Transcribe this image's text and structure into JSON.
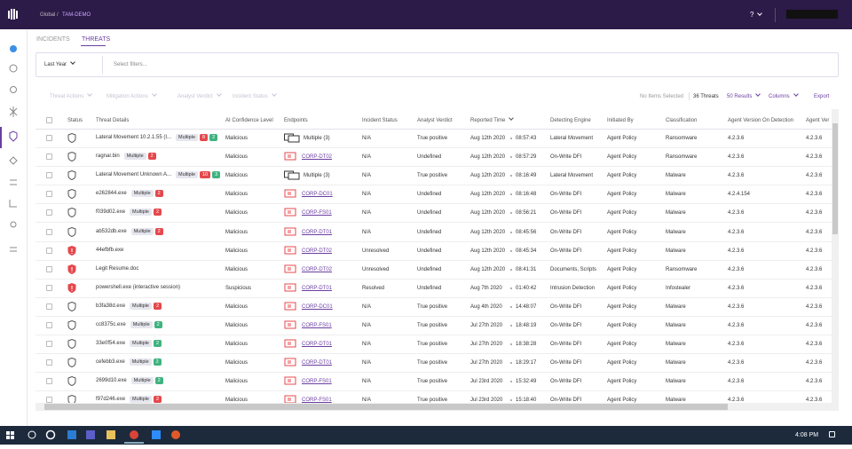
{
  "topbar": {
    "breadcrumb": [
      "Global",
      "TAM-DEMO"
    ],
    "separator": "/",
    "help": "?"
  },
  "tabs": [
    "INCIDENTS",
    "THREATS"
  ],
  "filter": {
    "range": "Last Year",
    "placeholder": "Select filters..."
  },
  "toolbar": {
    "actions": [
      "Threat Actions",
      "Mitigation Actions",
      "Analyst Verdict",
      "Incident Status"
    ],
    "selection": "No Items Selected",
    "count": "36 Threats",
    "results": "50 Results",
    "columns": "Columns",
    "export": "Export"
  },
  "table": {
    "columns": [
      "Status",
      "Threat Details",
      "AI Confidence Level",
      "Endpoints",
      "Incident Status",
      "Analyst Verdict",
      "Reported Time",
      "Detecting Engine",
      "Initiated By",
      "Classification",
      "Agent Version On Detection",
      "Agent Ver"
    ],
    "rows": [
      {
        "shield": "#555",
        "name": "Lateral Movement 10.2.1.55 (I...",
        "tag": "Multiple",
        "badges": [
          {
            "count": 8,
            "color": "#e5484d"
          },
          {
            "count": 2,
            "color": "#3fb37f"
          }
        ],
        "confidence": "Malicious",
        "endpoint": "Multiple (3)",
        "endpoint_type": "group",
        "incident": "N/A",
        "verdict": "True positive",
        "date": "Aug 12th 2020",
        "time": "08:57:43",
        "engine": "Lateral Movement",
        "initiated": "Agent Policy",
        "classification": "Ransomware",
        "agent_detect": "4.2.3.6",
        "agent": "4.2.3.6"
      },
      {
        "shield": "#555",
        "name": "ragnar.bin",
        "tag": "Multiple",
        "badges": [
          {
            "count": 2,
            "color": "#e5484d"
          }
        ],
        "confidence": "Malicious",
        "endpoint": "CORP-DT02",
        "endpoint_type": "host",
        "incident": "N/A",
        "verdict": "Undefined",
        "date": "Aug 12th 2020",
        "time": "08:57:29",
        "engine": "On-Write DFI",
        "initiated": "Agent Policy",
        "classification": "Ransomware",
        "agent_detect": "4.2.3.6",
        "agent": "4.2.3.6"
      },
      {
        "shield": "#555",
        "name": "Lateral Movement Unknown A...",
        "tag": "Multiple",
        "badges": [
          {
            "count": 10,
            "color": "#e5484d"
          },
          {
            "count": 3,
            "color": "#3fb37f"
          }
        ],
        "confidence": "Malicious",
        "endpoint": "Multiple (3)",
        "endpoint_type": "group",
        "incident": "N/A",
        "verdict": "True positive",
        "date": "Aug 12th 2020",
        "time": "08:16:49",
        "engine": "Lateral Movement",
        "initiated": "Agent Policy",
        "classification": "Malware",
        "agent_detect": "4.2.3.6",
        "agent": "4.2.3.6"
      },
      {
        "shield": "#555",
        "name": "e262844.exe",
        "tag": "Multiple",
        "badges": [
          {
            "count": 2,
            "color": "#e5484d"
          }
        ],
        "confidence": "Malicious",
        "endpoint": "CORP-DC01",
        "endpoint_type": "host",
        "incident": "N/A",
        "verdict": "Undefined",
        "date": "Aug 12th 2020",
        "time": "08:16:48",
        "engine": "On-Write DFI",
        "initiated": "Agent Policy",
        "classification": "Malware",
        "agent_detect": "4.2.4.154",
        "agent": "4.2.3.6"
      },
      {
        "shield": "#555",
        "name": "f039d02.exe",
        "tag": "Multiple",
        "badges": [
          {
            "count": 2,
            "color": "#e5484d"
          }
        ],
        "confidence": "Malicious",
        "endpoint": "CORP-FS01",
        "endpoint_type": "host",
        "incident": "N/A",
        "verdict": "Undefined",
        "date": "Aug 12th 2020",
        "time": "08:56:21",
        "engine": "On-Write DFI",
        "initiated": "Agent Policy",
        "classification": "Malware",
        "agent_detect": "4.2.3.6",
        "agent": "4.2.3.6"
      },
      {
        "shield": "#555",
        "name": "ab532db.exe",
        "tag": "Multiple",
        "badges": [
          {
            "count": 2,
            "color": "#e5484d"
          }
        ],
        "confidence": "Malicious",
        "endpoint": "CORP-DT01",
        "endpoint_type": "host",
        "incident": "N/A",
        "verdict": "Undefined",
        "date": "Aug 12th 2020",
        "time": "08:45:56",
        "engine": "On-Write DFI",
        "initiated": "Agent Policy",
        "classification": "Malware",
        "agent_detect": "4.2.3.6",
        "agent": "4.2.3.6"
      },
      {
        "shield": "#e5484d",
        "name": "44efbfb.exe",
        "confidence": "Malicious",
        "endpoint": "CORP-DT02",
        "endpoint_type": "host",
        "incident": "Unresolved",
        "verdict": "Undefined",
        "date": "Aug 12th 2020",
        "time": "08:45:34",
        "engine": "On-Write DFI",
        "initiated": "Agent Policy",
        "classification": "Malware",
        "agent_detect": "4.2.3.6",
        "agent": "4.2.3.6"
      },
      {
        "shield": "#e5484d",
        "name": "Legit Resume.doc",
        "confidence": "Malicious",
        "endpoint": "CORP-DT02",
        "endpoint_type": "host",
        "incident": "Unresolved",
        "verdict": "Undefined",
        "date": "Aug 12th 2020",
        "time": "08:41:31",
        "engine": "Documents, Scripts",
        "initiated": "Agent Policy",
        "classification": "Ransomware",
        "agent_detect": "4.2.3.6",
        "agent": "4.2.3.6"
      },
      {
        "shield": "#e5484d",
        "name": "powershell.exe (interactive session)",
        "confidence": "Suspicious",
        "endpoint": "CORP-DT01",
        "endpoint_type": "host",
        "incident": "Resolved",
        "verdict": "Undefined",
        "date": "Aug 7th 2020",
        "time": "01:40:42",
        "engine": "Intrusion Detection",
        "initiated": "Agent Policy",
        "classification": "Infostealer",
        "agent_detect": "4.2.3.6",
        "agent": "4.2.3.6"
      },
      {
        "shield": "#555",
        "name": "b3fa38d.exe",
        "tag": "Multiple",
        "badges": [
          {
            "count": 2,
            "color": "#e5484d"
          }
        ],
        "confidence": "Malicious",
        "endpoint": "CORP-DC01",
        "endpoint_type": "host",
        "incident": "N/A",
        "verdict": "True positive",
        "date": "Aug 4th 2020",
        "time": "14:48:07",
        "engine": "On-Write DFI",
        "initiated": "Agent Policy",
        "classification": "Malware",
        "agent_detect": "4.2.3.6",
        "agent": "4.2.3.6"
      },
      {
        "shield": "#555",
        "name": "cc8375c.exe",
        "tag": "Multiple",
        "badges": [
          {
            "count": 2,
            "color": "#3fb37f"
          }
        ],
        "confidence": "Malicious",
        "endpoint": "CORP-FS01",
        "endpoint_type": "host",
        "incident": "N/A",
        "verdict": "True positive",
        "date": "Jul 27th 2020",
        "time": "18:48:19",
        "engine": "On-Write DFI",
        "initiated": "Agent Policy",
        "classification": "Malware",
        "agent_detect": "4.2.3.6",
        "agent": "4.2.3.6"
      },
      {
        "shield": "#555",
        "name": "33e0f54.exe",
        "tag": "Multiple",
        "badges": [
          {
            "count": 2,
            "color": "#3fb37f"
          }
        ],
        "confidence": "Malicious",
        "endpoint": "CORP-DT01",
        "endpoint_type": "host",
        "incident": "N/A",
        "verdict": "True positive",
        "date": "Jul 27th 2020",
        "time": "18:38:28",
        "engine": "On-Write DFI",
        "initiated": "Agent Policy",
        "classification": "Malware",
        "agent_detect": "4.2.3.6",
        "agent": "4.2.3.6"
      },
      {
        "shield": "#555",
        "name": "cefebb3.exe",
        "tag": "Multiple",
        "badges": [
          {
            "count": 2,
            "color": "#3fb37f"
          }
        ],
        "confidence": "Malicious",
        "endpoint": "CORP-DT01",
        "endpoint_type": "host",
        "incident": "N/A",
        "verdict": "True positive",
        "date": "Jul 27th 2020",
        "time": "18:29:17",
        "engine": "On-Write DFI",
        "initiated": "Agent Policy",
        "classification": "Malware",
        "agent_detect": "4.2.3.6",
        "agent": "4.2.3.6"
      },
      {
        "shield": "#555",
        "name": "2699d10.exe",
        "tag": "Multiple",
        "badges": [
          {
            "count": 2,
            "color": "#3fb37f"
          }
        ],
        "confidence": "Malicious",
        "endpoint": "CORP-FS01",
        "endpoint_type": "host",
        "incident": "N/A",
        "verdict": "True positive",
        "date": "Jul 23rd 2020",
        "time": "15:32:49",
        "engine": "On-Write DFI",
        "initiated": "Agent Policy",
        "classification": "Malware",
        "agent_detect": "4.2.3.6",
        "agent": "4.2.3.6"
      },
      {
        "shield": "#555",
        "name": "f97d246.exe",
        "tag": "Multiple",
        "badges": [
          {
            "count": 2,
            "color": "#e5484d"
          }
        ],
        "confidence": "Malicious",
        "endpoint": "CORP-FS01",
        "endpoint_type": "host",
        "incident": "N/A",
        "verdict": "True positive",
        "date": "Jul 23rd 2020",
        "time": "15:18:40",
        "engine": "On-Write DFI",
        "initiated": "Agent Policy",
        "classification": "Malware",
        "agent_detect": "4.2.3.6",
        "agent": "4.2.3.6"
      }
    ]
  },
  "taskbar": {
    "clock": "4:08 PM"
  }
}
